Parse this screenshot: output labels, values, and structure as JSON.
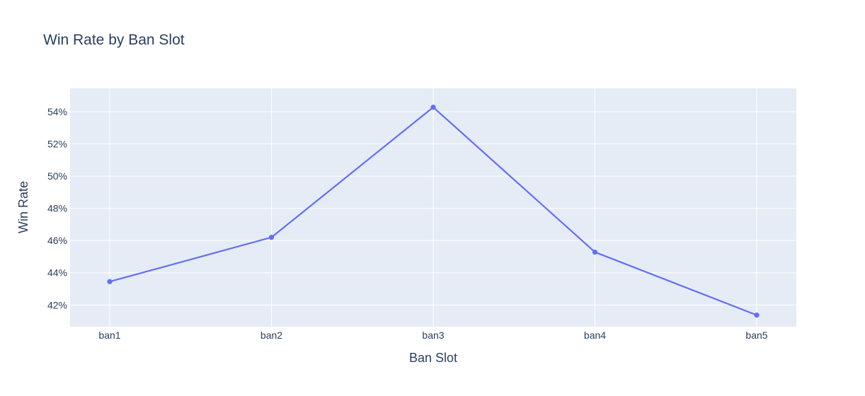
{
  "chart_data": {
    "type": "line",
    "title": "Win Rate by Ban Slot",
    "xlabel": "Ban Slot",
    "ylabel": "Win Rate",
    "categories": [
      "ban1",
      "ban2",
      "ban3",
      "ban4",
      "ban5"
    ],
    "values": [
      0.4345,
      0.462,
      0.5428,
      0.4528,
      0.4137
    ],
    "ylim": [
      0.4065,
      0.5545
    ],
    "yticks": [
      0.42,
      0.44,
      0.46,
      0.48,
      0.5,
      0.52,
      0.54
    ],
    "ytick_labels": [
      "42%",
      "44%",
      "46%",
      "48%",
      "50%",
      "52%",
      "54%"
    ],
    "grid": true,
    "colors": {
      "line": "#636efa",
      "plot_bg": "#e5ecf6",
      "grid": "#ffffff",
      "text": "#2a3f5f"
    }
  }
}
